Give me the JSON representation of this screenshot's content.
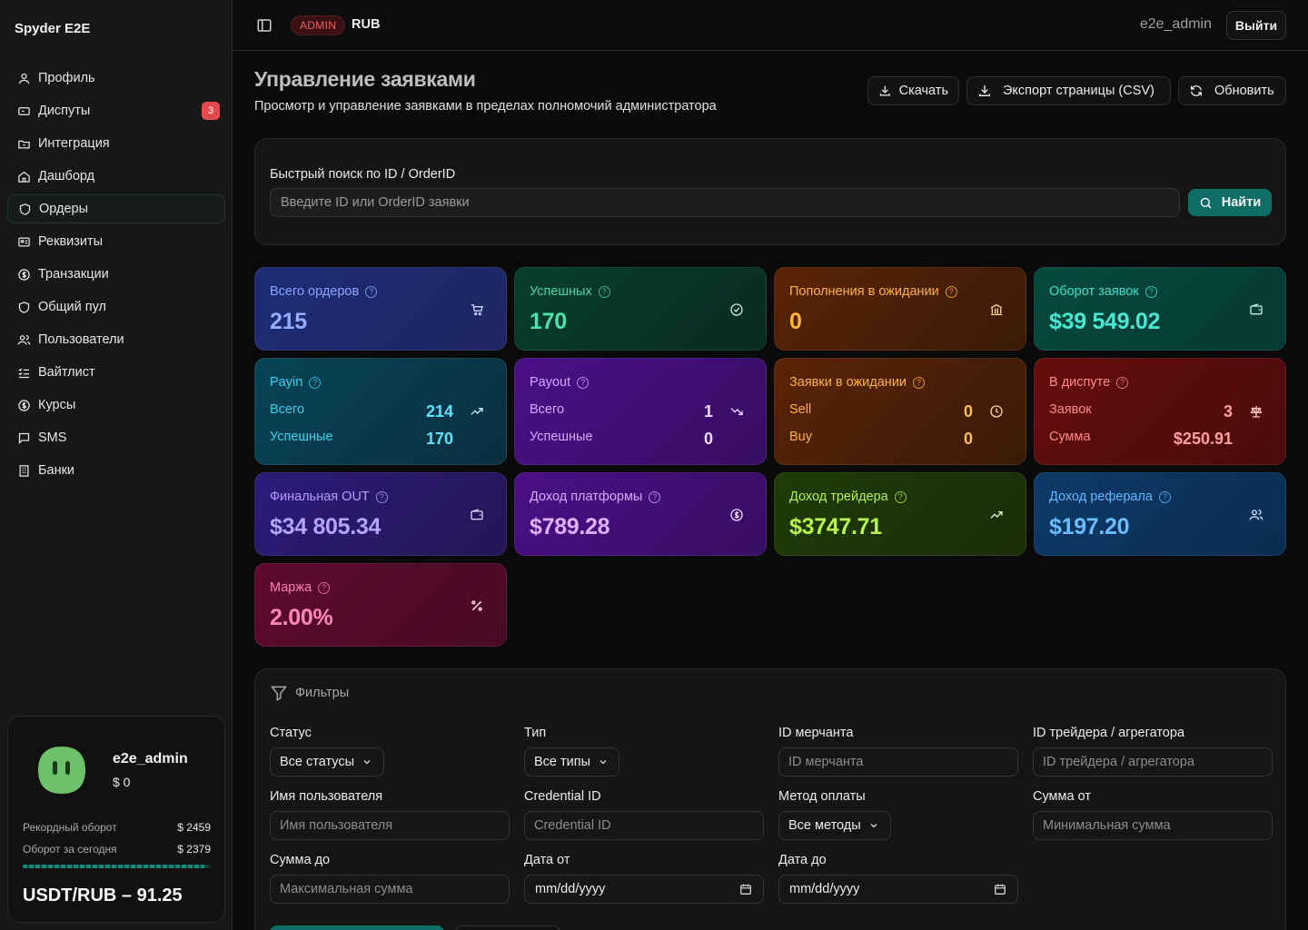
{
  "sidebar": {
    "brand": "Spyder E2E",
    "items": [
      {
        "label": "Профиль",
        "icon": "user-icon"
      },
      {
        "label": "Диспуты",
        "icon": "ticket-icon",
        "badge": "3"
      },
      {
        "label": "Интеграция",
        "icon": "folder-icon"
      },
      {
        "label": "Дашборд",
        "icon": "home-icon"
      },
      {
        "label": "Ордеры",
        "icon": "shield-icon",
        "active": true
      },
      {
        "label": "Реквизиты",
        "icon": "id-card-icon"
      },
      {
        "label": "Транзакции",
        "icon": "dollar-icon"
      },
      {
        "label": "Общий пул",
        "icon": "shield-icon"
      },
      {
        "label": "Пользователи",
        "icon": "users-icon"
      },
      {
        "label": "Вайтлист",
        "icon": "list-check-icon"
      },
      {
        "label": "Курсы",
        "icon": "dollar-icon"
      },
      {
        "label": "SMS",
        "icon": "message-icon"
      },
      {
        "label": "Банки",
        "icon": "building-icon"
      }
    ],
    "user_card": {
      "name": "e2e_admin",
      "balance": "$ 0",
      "record_label": "Рекордный оборот",
      "record_value": "$ 2459",
      "today_label": "Оборот за сегодня",
      "today_value": "$ 2379",
      "progress": 0.967,
      "rate": "USDT/RUB – 91.25"
    }
  },
  "header": {
    "role_badge": "ADMIN",
    "currency": "RUB",
    "username": "e2e_admin",
    "logout_label": "Выйти"
  },
  "page": {
    "title": "Управление заявками",
    "subtitle": "Просмотр и управление заявками в пределах полномочий администратора",
    "buttons": {
      "download": "Скачать",
      "export": "Экспорт страницы (CSV)",
      "refresh": "Обновить"
    }
  },
  "search": {
    "label": "Быстрый поиск по ID / OrderID",
    "placeholder": "Введите ID или OrderID заявки",
    "button": "Найти"
  },
  "stats": {
    "total_orders": {
      "label": "Всего ордеров",
      "value": "215"
    },
    "success": {
      "label": "Успешных",
      "value": "170"
    },
    "pending_deposits": {
      "label": "Пополнения в ожидании",
      "value": "0"
    },
    "turnover": {
      "label": "Оборот заявок",
      "value": "$39 549.02"
    },
    "payin": {
      "label": "Payin",
      "total_label": "Всего",
      "total": "214",
      "success_label": "Успешные",
      "success": "170"
    },
    "payout": {
      "label": "Payout",
      "total_label": "Всего",
      "total": "1",
      "success_label": "Успешные",
      "success": "0"
    },
    "pending": {
      "label": "Заявки в ожидании",
      "sell_label": "Sell",
      "sell": "0",
      "buy_label": "Buy",
      "buy": "0"
    },
    "dispute": {
      "label": "В диспуте",
      "count_label": "Заявок",
      "count": "3",
      "sum_label": "Сумма",
      "sum": "$250.91"
    },
    "final_out": {
      "label": "Финальная OUT",
      "value": "$34 805.34"
    },
    "platform_income": {
      "label": "Доход платформы",
      "value": "$789.28"
    },
    "trader_income": {
      "label": "Доход трейдера",
      "value": "$3747.71"
    },
    "referral_income": {
      "label": "Доход реферала",
      "value": "$197.20"
    },
    "margin": {
      "label": "Маржа",
      "value": "2.00%"
    }
  },
  "filters": {
    "title": "Фильтры",
    "status": {
      "label": "Статус",
      "value": "Все статусы"
    },
    "type": {
      "label": "Тип",
      "value": "Все типы"
    },
    "merchant_id": {
      "label": "ID мерчанта",
      "placeholder": "ID мерчанта"
    },
    "trader_id": {
      "label": "ID трейдера / агрегатора",
      "placeholder": "ID трейдера / агрегатора"
    },
    "username": {
      "label": "Имя пользователя",
      "placeholder": "Имя пользователя"
    },
    "credential": {
      "label": "Credential ID",
      "placeholder": "Credential ID"
    },
    "method": {
      "label": "Метод оплаты",
      "value": "Все методы"
    },
    "sum_from": {
      "label": "Сумма от",
      "placeholder": "Минимальная сумма"
    },
    "sum_to": {
      "label": "Сумма до",
      "placeholder": "Максимальная сумма"
    },
    "date_from": {
      "label": "Дата от",
      "value": "mm/dd/yyyy"
    },
    "date_to": {
      "label": "Дата до",
      "value": "mm/dd/yyyy"
    }
  }
}
